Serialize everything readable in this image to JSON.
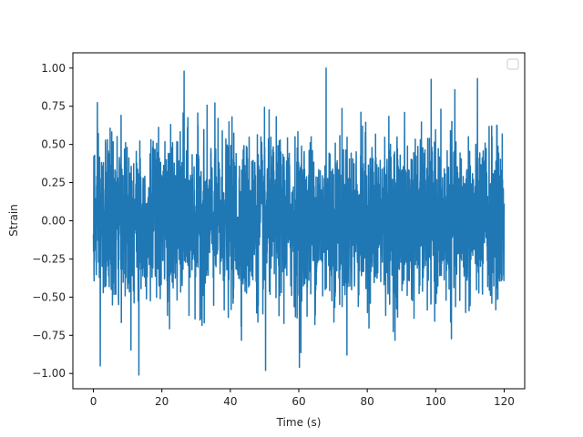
{
  "chart_data": {
    "type": "line",
    "title": "",
    "xlabel": "Time (s)",
    "ylabel": "Strain",
    "xlim": [
      -6.0,
      126.0
    ],
    "ylim": [
      -1.1,
      1.1
    ],
    "xticks": [
      0,
      20,
      40,
      60,
      80,
      100,
      120
    ],
    "xtick_labels": [
      "0",
      "20",
      "40",
      "60",
      "80",
      "100",
      "120"
    ],
    "yticks": [
      -1.0,
      -0.75,
      -0.5,
      -0.25,
      0.0,
      0.25,
      0.5,
      0.75,
      1.0
    ],
    "ytick_labels": [
      "−1.00",
      "−0.75",
      "−0.50",
      "−0.25",
      "0.00",
      "0.25",
      "0.50",
      "0.75",
      "1.00"
    ],
    "grid": false,
    "legend": {
      "placement": "upper right",
      "entries": []
    },
    "series": [
      {
        "color": "#1f77b4",
        "x_range": [
          0,
          120
        ],
        "y_range": [
          -1.01,
          1.0
        ],
        "description": "dense noise-like strain signal",
        "notable_points": [
          {
            "x": 2.0,
            "y": -0.95
          },
          {
            "x": 26.5,
            "y": 0.98
          },
          {
            "x": 68.0,
            "y": 1.0
          },
          {
            "x": 13.3,
            "y": -1.01
          },
          {
            "x": 50.3,
            "y": -0.98
          },
          {
            "x": 60.2,
            "y": -0.96
          }
        ]
      }
    ]
  }
}
